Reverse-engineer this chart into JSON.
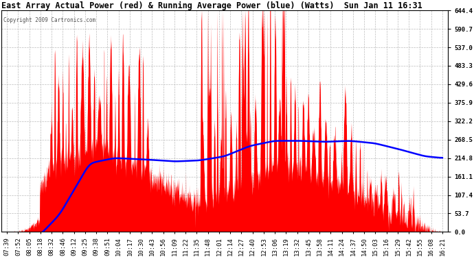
{
  "title": "East Array Actual Power (red) & Running Average Power (blue) (Watts)  Sun Jan 11 16:31",
  "copyright": "Copyright 2009 Cartronics.com",
  "yticks": [
    0.0,
    53.7,
    107.4,
    161.1,
    214.8,
    268.5,
    322.2,
    375.9,
    429.6,
    483.3,
    537.0,
    590.7,
    644.4
  ],
  "ylim": [
    0.0,
    644.4
  ],
  "bg_color": "#ffffff",
  "bar_color": "#ff0000",
  "line_color": "#0000ff",
  "grid_color": "#bbbbbb",
  "x_labels": [
    "07:39",
    "07:52",
    "08:05",
    "08:18",
    "08:32",
    "08:46",
    "09:12",
    "09:25",
    "09:38",
    "09:51",
    "10:04",
    "10:17",
    "10:30",
    "10:43",
    "10:56",
    "11:09",
    "11:22",
    "11:35",
    "11:48",
    "12:01",
    "12:14",
    "12:27",
    "12:40",
    "12:53",
    "13:06",
    "13:19",
    "13:32",
    "13:45",
    "13:58",
    "14:11",
    "14:24",
    "14:37",
    "14:50",
    "15:03",
    "15:16",
    "15:29",
    "15:42",
    "15:55",
    "16:08",
    "16:21"
  ],
  "title_fontsize": 8.5,
  "tick_fontsize": 6.5,
  "copyright_fontsize": 5.5,
  "figwidth": 6.9,
  "figheight": 3.75,
  "dpi": 100
}
